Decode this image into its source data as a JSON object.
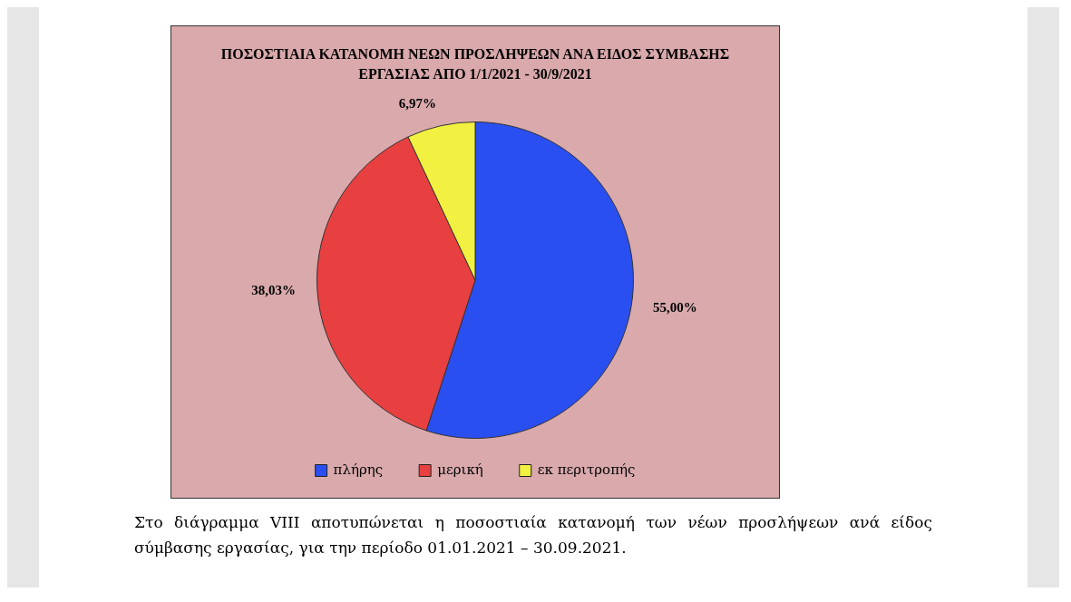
{
  "chart_data": {
    "type": "pie",
    "title": "ΠΟΣΟΣΤΙΑΙΑ ΚΑΤΑΝΟΜΗ ΝΕΩΝ ΠΡΟΣΛΗΨΕΩΝ ΑΝΑ ΕΙΔΟΣ ΣΥΜΒΑΣΗΣ ΕΡΓΑΣΙΑΣ ΑΠΟ 1/1/2021 - 30/9/2021",
    "categories": [
      "πλήρης",
      "μερική",
      "εκ περιτροπής"
    ],
    "values": [
      55.0,
      38.03,
      6.97
    ],
    "colors": [
      "#2a4ff0",
      "#e84040",
      "#f2f040"
    ],
    "value_labels": [
      "55,00%",
      "38,03%",
      "6,97%"
    ],
    "legend": "bottom",
    "annotations": [
      "Στο διάγραμμα VIII αποτυπώνεται η ποσοστιαία κατανομή των νέων προσλήψεων ανά είδος σύμβασης εργασίας, για την περίοδο 01.01.2021 – 30.09.2021."
    ]
  }
}
